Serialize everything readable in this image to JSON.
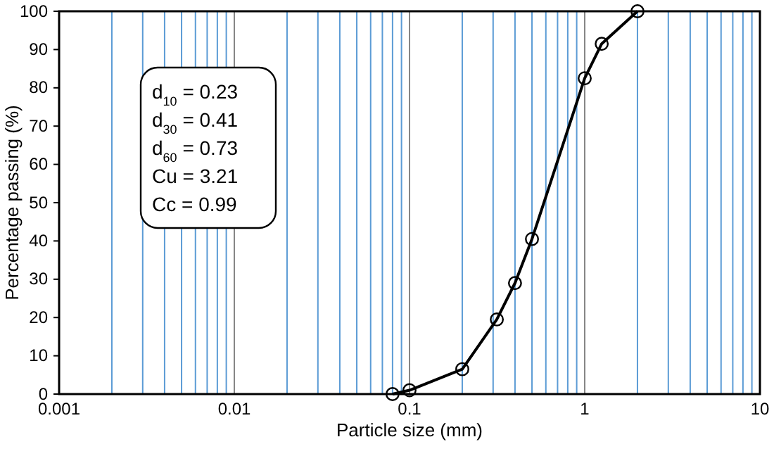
{
  "chart_data": {
    "type": "line",
    "xlabel": "Particle size (mm)",
    "ylabel": "Percentage passing (%)",
    "x": [
      0.08,
      0.1,
      0.2,
      0.315,
      0.4,
      0.5,
      1,
      1.25,
      2
    ],
    "values": [
      0,
      1,
      6.5,
      19.5,
      29,
      40.5,
      82.5,
      91.5,
      100
    ],
    "color": "#000000",
    "marker": "circle",
    "line_style": "solid",
    "log": "x",
    "xlim": [
      0.001,
      10
    ],
    "ylim": [
      0,
      100
    ],
    "xticks": [
      0.001,
      {
        "value": 0.002,
        "label": null
      },
      {
        "value": 0.003,
        "label": null
      },
      {
        "value": 0.004,
        "label": null
      },
      {
        "value": 0.005,
        "label": null
      },
      {
        "value": 0.006,
        "label": null
      },
      {
        "value": 0.007,
        "label": null
      },
      {
        "value": 0.008,
        "label": null
      },
      {
        "value": 0.009,
        "label": null
      },
      0.01,
      {
        "value": 0.02,
        "label": null
      },
      {
        "value": 0.03,
        "label": null
      },
      {
        "value": 0.04,
        "label": null
      },
      {
        "value": 0.05,
        "label": null
      },
      {
        "value": 0.06,
        "label": null
      },
      {
        "value": 0.07,
        "label": null
      },
      {
        "value": 0.08,
        "label": null
      },
      {
        "value": 0.09,
        "label": null
      },
      0.1,
      {
        "value": 0.2,
        "label": null
      },
      {
        "value": 0.3,
        "label": null
      },
      {
        "value": 0.4,
        "label": null
      },
      {
        "value": 0.5,
        "label": null
      },
      {
        "value": 0.6,
        "label": null
      },
      {
        "value": 0.7,
        "label": null
      },
      {
        "value": 0.8,
        "label": null
      },
      {
        "value": 0.9,
        "label": null
      },
      1,
      {
        "value": 2,
        "label": null
      },
      {
        "value": 3,
        "label": null
      },
      {
        "value": 4,
        "label": null
      },
      {
        "value": 5,
        "label": null
      },
      {
        "value": 6,
        "label": null
      },
      {
        "value": 7,
        "label": null
      },
      {
        "value": 8,
        "label": null
      },
      {
        "value": 9,
        "label": null
      },
      10
    ],
    "yticks": [
      0,
      10,
      20,
      30,
      40,
      50,
      60,
      70,
      80,
      90,
      100
    ],
    "grid": "x",
    "annotations": [
      "d$_{10}$ = 0.23",
      "d$_{30}$ = 0.41",
      "d$_{60}$ = 0.73",
      "Cu = 3.21",
      "Cc = 0.99"
    ]
  }
}
